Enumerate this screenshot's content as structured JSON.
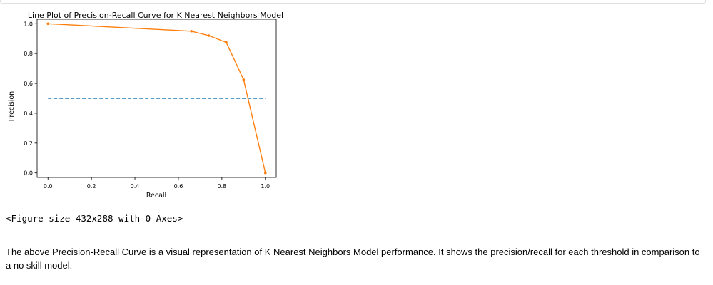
{
  "chart_data": {
    "type": "line",
    "title": "Line Plot of Precision-Recall Curve for K Nearest Neighbors Model",
    "xlabel": "Recall",
    "ylabel": "Precision",
    "xlim": [
      -0.05,
      1.05
    ],
    "ylim": [
      -0.03,
      1.03
    ],
    "xticks": [
      "0.0",
      "0.2",
      "0.4",
      "0.6",
      "0.8",
      "1.0"
    ],
    "yticks": [
      "0.0",
      "0.2",
      "0.4",
      "0.6",
      "0.8",
      "1.0"
    ],
    "grid": false,
    "series": [
      {
        "style": "dashed",
        "color": "#1f77b4",
        "x": [
          0,
          1
        ],
        "y": [
          0.5,
          0.5
        ]
      },
      {
        "style": "solid-marker",
        "color": "#ff7f0e",
        "x": [
          0,
          0.66,
          0.74,
          0.82,
          0.9,
          1.0
        ],
        "y": [
          1.0,
          0.95,
          0.92,
          0.875,
          0.625,
          0.0
        ]
      }
    ]
  },
  "figure_repr": "<Figure size 432x288 with 0 Axes>",
  "description": "The above Precision-Recall Curve is a visual representation of K Nearest Neighbors Model performance. It shows the precision/recall for each threshold in comparison to a no skill model."
}
